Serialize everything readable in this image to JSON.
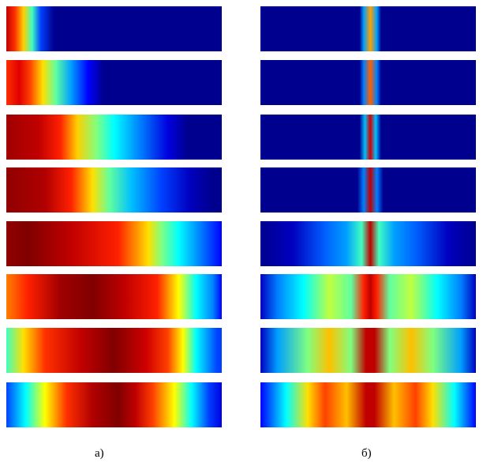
{
  "panel_labels": [
    "а)",
    "б)"
  ]
}
